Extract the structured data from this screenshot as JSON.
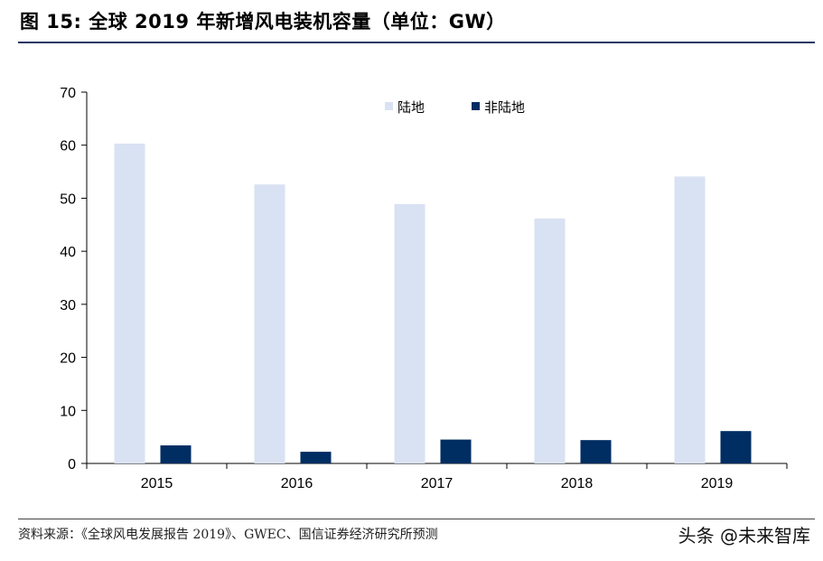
{
  "header": {
    "title": "图 15: 全球 2019 年新增风电装机容量（单位：GW）"
  },
  "footer": {
    "source": "资料来源：《全球风电发展报告 2019》、GWEC、国信证券经济研究所预测",
    "watermark": "头条 @未来智库"
  },
  "colors": {
    "onshore": "#d9e2f3",
    "offshore": "#002d62",
    "rule": "#1f3864"
  },
  "chart_data": {
    "type": "bar",
    "title": "",
    "xlabel": "",
    "ylabel": "",
    "categories": [
      "2015",
      "2016",
      "2017",
      "2018",
      "2019"
    ],
    "ylim": [
      0,
      70
    ],
    "yticks": [
      0,
      10,
      20,
      30,
      40,
      50,
      60,
      70
    ],
    "grid": false,
    "legend_position": "top-right",
    "series": [
      {
        "name": "陆地",
        "values": [
          60.3,
          52.6,
          48.9,
          46.2,
          54.1
        ],
        "color": "#d9e2f3"
      },
      {
        "name": "非陆地",
        "values": [
          3.4,
          2.2,
          4.5,
          4.4,
          6.1
        ],
        "color": "#002d62"
      }
    ]
  }
}
